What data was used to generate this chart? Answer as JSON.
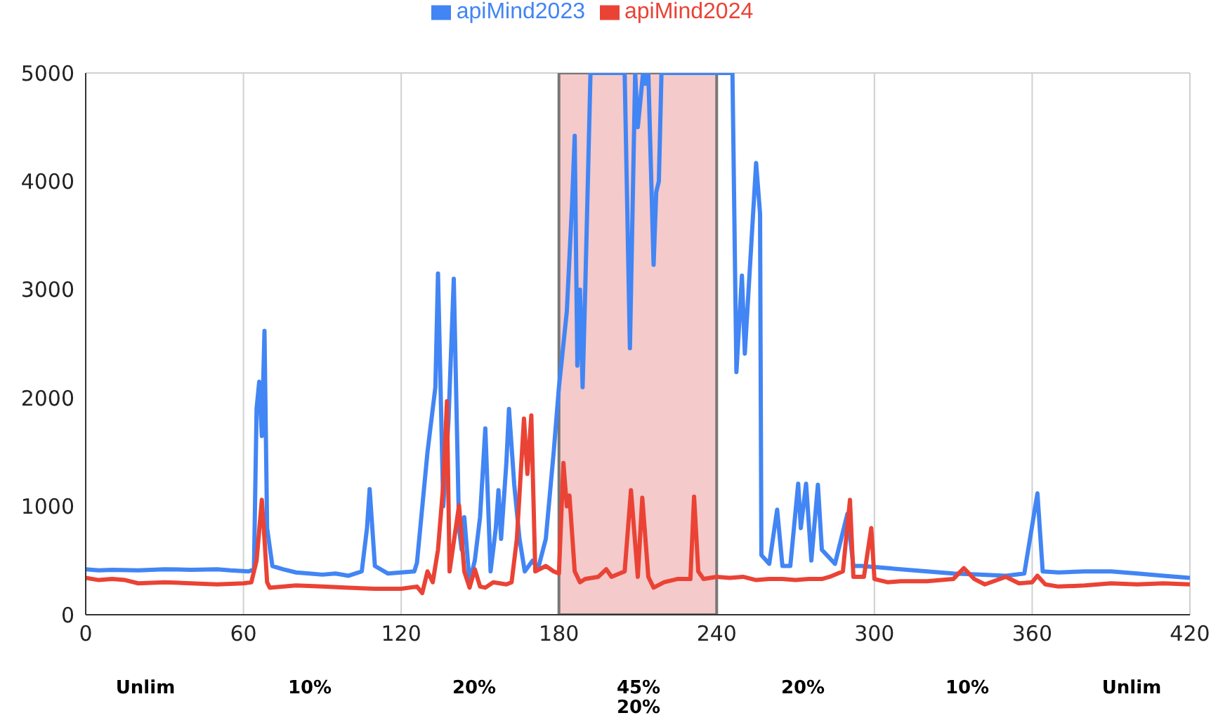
{
  "chart_data": {
    "type": "line",
    "xlim": [
      0,
      420
    ],
    "xticks": [
      0,
      60,
      120,
      180,
      240,
      300,
      360,
      420
    ],
    "ylim": [
      0,
      5000
    ],
    "yticks": [
      0,
      1000,
      2000,
      3000,
      4000,
      5000
    ],
    "grid": true,
    "legend": "top",
    "marker": "none",
    "line_style": "solid",
    "series": [
      {
        "name": "apiMind2023",
        "color": "#4285f4",
        "x": [
          0,
          5,
          10,
          20,
          30,
          40,
          50,
          55,
          62,
          64,
          65,
          66,
          67,
          68,
          69,
          71,
          75,
          80,
          85,
          90,
          95,
          100,
          105,
          107,
          108,
          110,
          115,
          120,
          125,
          126,
          130,
          133,
          134,
          136,
          138,
          140,
          142,
          143,
          144,
          146,
          148,
          150,
          152,
          154,
          156,
          157,
          158,
          160,
          161,
          163,
          165,
          167,
          170,
          172,
          175,
          178,
          180,
          183,
          185,
          186,
          187,
          188,
          189,
          190,
          192,
          205,
          207,
          209,
          210,
          212,
          213,
          214,
          216,
          217,
          218,
          219,
          246,
          247.5,
          249.6,
          250.7,
          255,
          256.5,
          257,
          260,
          263,
          265,
          268,
          271,
          272,
          274,
          276,
          278.5,
          280,
          285,
          289.7,
          292,
          295,
          300,
          310,
          320,
          330,
          340,
          350,
          357,
          362,
          364,
          370,
          380,
          390,
          400,
          410,
          420
        ],
        "values": [
          420,
          410,
          415,
          410,
          420,
          415,
          420,
          410,
          400,
          420,
          1900,
          2150,
          1650,
          2620,
          800,
          450,
          420,
          390,
          380,
          370,
          380,
          360,
          400,
          800,
          1160,
          450,
          380,
          390,
          400,
          480,
          1500,
          2100,
          3150,
          1000,
          1800,
          3100,
          800,
          600,
          900,
          300,
          500,
          900,
          1720,
          400,
          800,
          1150,
          700,
          1400,
          1900,
          1200,
          700,
          400,
          500,
          420,
          700,
          1500,
          2100,
          2800,
          3800,
          4420,
          2300,
          3000,
          2100,
          3000,
          5000,
          5000,
          2460,
          5000,
          4500,
          5000,
          4900,
          5000,
          3230,
          3900,
          4000,
          5000,
          5000,
          2240,
          3130,
          2410,
          4170,
          3700,
          550,
          470,
          970,
          450,
          450,
          1210,
          800,
          1210,
          500,
          1200,
          600,
          470,
          930,
          450,
          450,
          440,
          420,
          400,
          380,
          370,
          360,
          380,
          1120,
          400,
          390,
          400,
          400,
          380,
          360,
          340
        ]
      },
      {
        "name": "apiMind2024",
        "color": "#ea4335",
        "x": [
          0,
          5,
          10,
          15,
          20,
          30,
          40,
          50,
          60,
          63,
          65,
          67,
          68,
          69,
          70,
          80,
          90,
          100,
          110,
          120,
          126,
          128,
          130,
          132,
          134,
          136,
          137.4,
          138.4,
          142,
          144,
          146,
          148,
          150,
          152,
          155,
          160,
          162,
          164,
          166.7,
          168,
          169.5,
          171,
          175,
          178,
          180,
          181.7,
          183,
          184,
          186,
          188,
          190,
          195,
          198,
          200,
          205,
          207.4,
          210,
          211.7,
          214,
          216,
          220,
          225,
          230,
          231.4,
          233,
          235,
          240,
          245,
          250,
          255,
          260,
          265,
          270,
          275,
          280,
          283,
          288,
          290.7,
          292,
          296,
          298.8,
          300,
          305,
          310,
          320,
          330,
          334,
          338,
          342,
          350,
          355,
          360,
          362,
          365,
          370,
          380,
          390,
          400,
          410,
          420
        ],
        "values": [
          340,
          320,
          330,
          320,
          290,
          300,
          290,
          280,
          290,
          300,
          500,
          1060,
          700,
          300,
          250,
          270,
          260,
          250,
          240,
          240,
          260,
          200,
          400,
          300,
          600,
          1200,
          1970,
          400,
          1010,
          400,
          250,
          420,
          260,
          250,
          300,
          280,
          300,
          700,
          1810,
          1300,
          1840,
          400,
          450,
          400,
          380,
          1400,
          1000,
          1100,
          400,
          300,
          330,
          350,
          420,
          350,
          400,
          1150,
          350,
          1080,
          350,
          250,
          300,
          330,
          330,
          1090,
          400,
          330,
          350,
          340,
          350,
          320,
          330,
          330,
          320,
          330,
          330,
          350,
          400,
          1060,
          350,
          350,
          800,
          330,
          300,
          310,
          310,
          330,
          430,
          330,
          280,
          350,
          290,
          300,
          360,
          280,
          260,
          270,
          290,
          280,
          290,
          280
        ]
      }
    ],
    "bands": [
      {
        "axis": "x",
        "from": 180,
        "to": 240,
        "color": "#e06666"
      }
    ],
    "annotations": [
      "Unlim",
      "10%",
      "20%",
      "45%\n20%",
      "20%",
      "10%",
      "Unlim"
    ]
  }
}
